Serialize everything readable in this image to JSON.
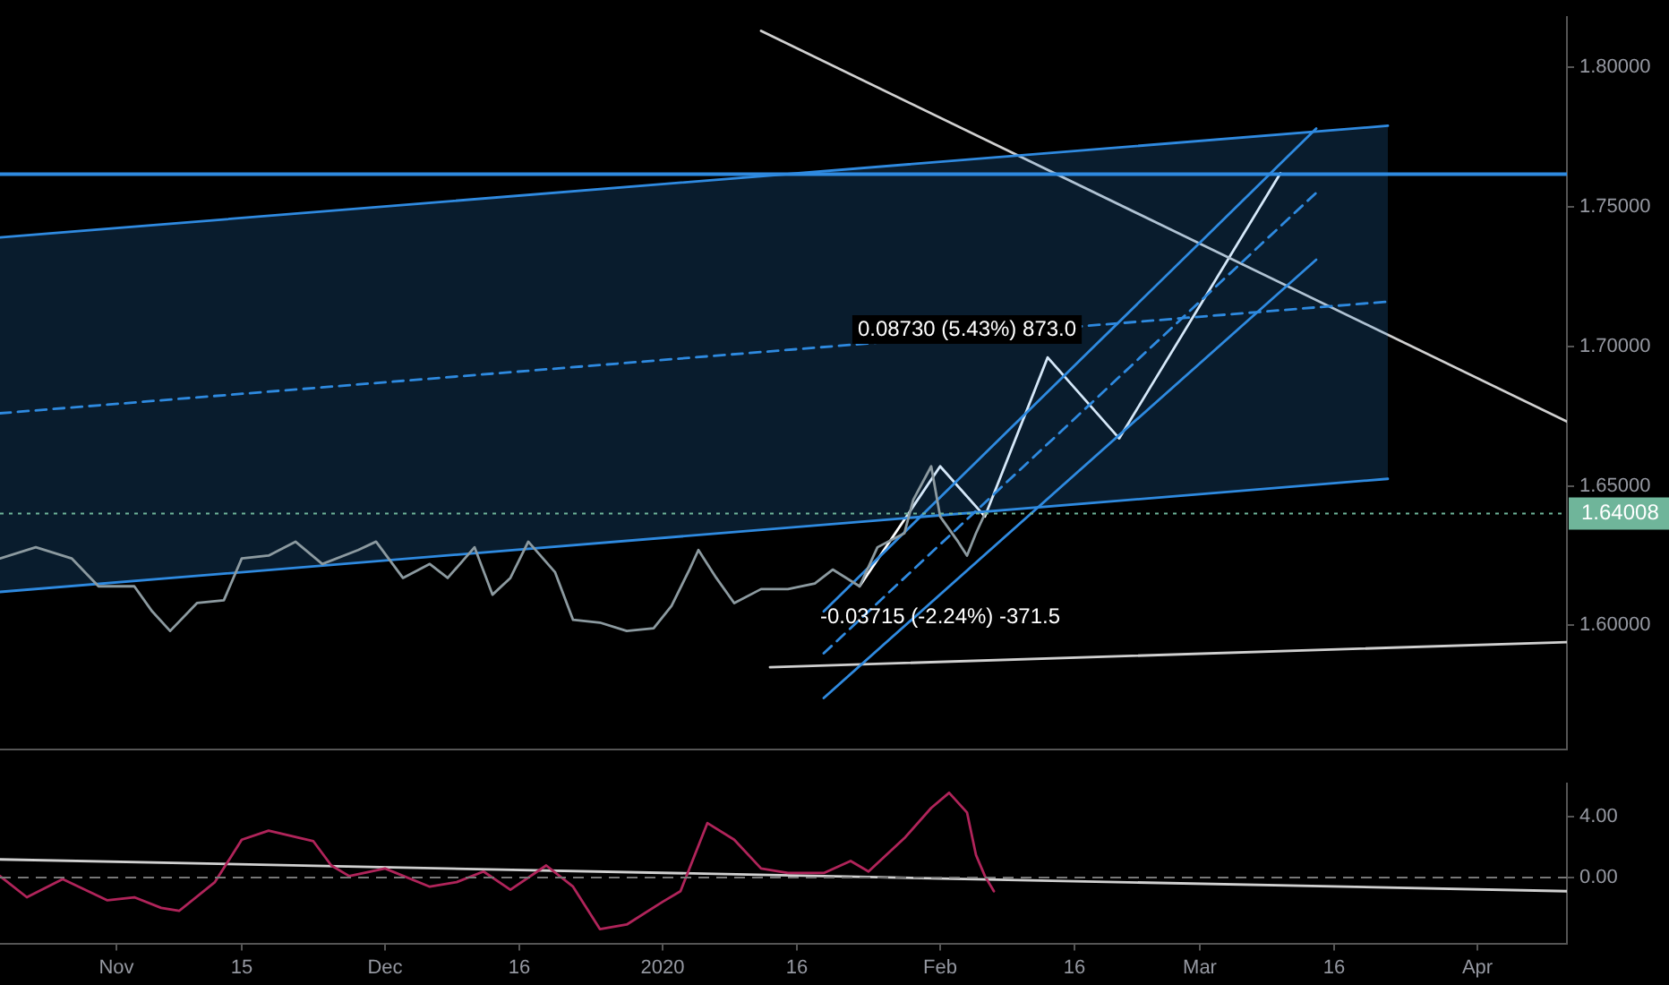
{
  "chart_data": [
    {
      "type": "line",
      "xlim": [
        "2019-10-19",
        "2020-04-11"
      ],
      "ylim": [
        1.5556,
        1.8179
      ],
      "yticks": [
        {
          "value": 1.6,
          "label": "1.60000"
        },
        {
          "value": 1.65,
          "label": "1.65000"
        },
        {
          "value": 1.7,
          "label": "1.70000"
        },
        {
          "value": 1.75,
          "label": "1.75000"
        },
        {
          "value": 1.8,
          "label": "1.80000"
        }
      ],
      "tick_labels": "y",
      "grid": false,
      "legend": false,
      "series": [
        {
          "color": "#8c9aa0",
          "x": [
            "2019-10-19",
            "2019-10-23",
            "2019-10-27",
            "2019-10-30",
            "2019-11-03",
            "2019-11-05",
            "2019-11-07",
            "2019-11-10",
            "2019-11-13",
            "2019-11-15",
            "2019-11-18",
            "2019-11-21",
            "2019-11-24",
            "2019-11-28",
            "2019-11-30",
            "2019-12-03",
            "2019-12-06",
            "2019-12-08",
            "2019-12-11",
            "2019-12-13",
            "2019-12-15",
            "2019-12-17",
            "2019-12-20",
            "2019-12-22",
            "2019-12-25",
            "2019-12-28",
            "2019-12-31",
            "2020-01-02",
            "2020-01-04",
            "2020-01-05",
            "2020-01-07",
            "2020-01-09",
            "2020-01-12",
            "2020-01-15",
            "2020-01-18",
            "2020-01-20",
            "2020-01-23",
            "2020-01-25",
            "2020-01-28",
            "2020-01-29",
            "2020-01-31",
            "2020-02-01",
            "2020-02-03",
            "2020-02-04",
            "2020-02-05",
            "2020-02-06"
          ],
          "values": [
            1.624,
            1.628,
            1.624,
            1.614,
            1.614,
            1.605,
            1.598,
            1.608,
            1.609,
            1.624,
            1.625,
            1.63,
            1.622,
            1.627,
            1.63,
            1.617,
            1.622,
            1.617,
            1.628,
            1.611,
            1.617,
            1.63,
            1.619,
            1.602,
            1.601,
            1.598,
            1.599,
            1.607,
            1.62,
            1.627,
            1.617,
            1.608,
            1.613,
            1.613,
            1.615,
            1.62,
            1.614,
            1.628,
            1.633,
            1.645,
            1.657,
            1.639,
            1.63,
            1.625,
            1.633,
            1.64
          ]
        },
        {
          "color": "#2f8ae0",
          "x": [
            "2019-10-19",
            "2020-03-22"
          ],
          "values": [
            1.739,
            1.779
          ]
        },
        {
          "color": "#2f8ae0",
          "line_style": "dashed",
          "x": [
            "2019-10-19",
            "2020-03-22"
          ],
          "values": [
            1.676,
            1.716
          ],
          "lower": [
            1.612,
            1.6525
          ],
          "upper": [
            1.739,
            1.779
          ]
        },
        {
          "color": "#2f8ae0",
          "x": [
            "2019-10-19",
            "2020-03-22"
          ],
          "values": [
            1.612,
            1.6525
          ]
        },
        {
          "color": "#2f8ae0",
          "x": [
            "2020-01-19",
            "2020-03-14"
          ],
          "values": [
            1.605,
            1.778
          ]
        },
        {
          "color": "#2f8ae0",
          "line_style": "dashed",
          "x": [
            "2020-01-19",
            "2020-03-14"
          ],
          "values": [
            1.59,
            1.755
          ]
        },
        {
          "color": "#2f8ae0",
          "x": [
            "2020-01-19",
            "2020-03-14"
          ],
          "values": [
            1.574,
            1.731
          ]
        },
        {
          "color": "#d0d0d0",
          "x": [
            "2020-01-12",
            "2020-04-11"
          ],
          "values": [
            1.813,
            1.673
          ]
        },
        {
          "color": "#d0d0d0",
          "x": [
            "2020-01-13",
            "2020-04-11"
          ],
          "values": [
            1.585,
            1.594
          ]
        },
        {
          "color": "#ffffff",
          "x": [
            "2020-01-23",
            "2020-02-01",
            "2020-02-06",
            "2020-02-13",
            "2020-02-21",
            "2020-03-10"
          ],
          "values": [
            1.614,
            1.657,
            1.639,
            1.696,
            1.667,
            1.762
          ]
        }
      ],
      "ref_lines": [
        {
          "axis": "y",
          "value": 1.7617,
          "color": "#2f8ae0",
          "line_style": "solid"
        },
        {
          "axis": "y",
          "value": 1.64008,
          "label": "1.64008",
          "color": "#6fb59a",
          "line_style": "dotted"
        }
      ],
      "annotations": [
        {
          "text": "0.08730 (5.43%) 873.0",
          "x": "2020-02-04",
          "y": 1.706
        },
        "-0.03715 (-2.24%) -371.5"
      ]
    },
    {
      "type": "line",
      "xlim": [
        "2019-10-19",
        "2020-04-11"
      ],
      "ylim": [
        -4.35,
        6.2
      ],
      "xticks": [
        {
          "value": "2019-11-01",
          "label": "Nov"
        },
        {
          "value": "2019-11-15",
          "label": "15"
        },
        {
          "value": "2019-12-01",
          "label": "Dec"
        },
        {
          "value": "2019-12-16",
          "label": "16"
        },
        {
          "value": "2020-01-01",
          "label": "2020"
        },
        {
          "value": "2020-01-16",
          "label": "16"
        },
        {
          "value": "2020-02-01",
          "label": "Feb"
        },
        {
          "value": "2020-02-16",
          "label": "16"
        },
        {
          "value": "2020-03-01",
          "label": "Mar"
        },
        {
          "value": "2020-03-16",
          "label": "16"
        },
        {
          "value": "2020-04-01",
          "label": "Apr"
        }
      ],
      "yticks": [
        {
          "value": 0,
          "label": "0.00"
        },
        {
          "value": 4,
          "label": "4.00"
        }
      ],
      "grid": false,
      "legend": false,
      "series": [
        {
          "color": "#b0245a",
          "x": [
            "2019-10-19",
            "2019-10-22",
            "2019-10-26",
            "2019-10-31",
            "2019-11-03",
            "2019-11-06",
            "2019-11-08",
            "2019-11-12",
            "2019-11-15",
            "2019-11-18",
            "2019-11-23",
            "2019-11-25",
            "2019-11-27",
            "2019-12-01",
            "2019-12-06",
            "2019-12-09",
            "2019-12-12",
            "2019-12-15",
            "2019-12-19",
            "2019-12-22",
            "2019-12-25",
            "2019-12-28",
            "2020-01-01",
            "2020-01-03",
            "2020-01-06",
            "2020-01-09",
            "2020-01-12",
            "2020-01-15",
            "2020-01-19",
            "2020-01-22",
            "2020-01-24",
            "2020-01-28",
            "2020-01-31",
            "2020-02-02",
            "2020-02-04",
            "2020-02-05",
            "2020-02-06",
            "2020-02-07"
          ],
          "values": [
            0.1,
            -1.3,
            -0.1,
            -1.5,
            -1.3,
            -2.0,
            -2.2,
            -0.3,
            2.5,
            3.1,
            2.4,
            0.8,
            0.1,
            0.6,
            -0.6,
            -0.3,
            0.4,
            -0.8,
            0.8,
            -0.6,
            -3.4,
            -3.1,
            -1.6,
            -0.9,
            3.6,
            2.5,
            0.6,
            0.3,
            0.3,
            1.1,
            0.4,
            2.6,
            4.6,
            5.6,
            4.3,
            1.5,
            0.1,
            -0.9
          ]
        },
        {
          "color": "#d0d0d0",
          "x": [
            "2019-10-19",
            "2020-04-11"
          ],
          "values": [
            1.2,
            -0.9
          ]
        }
      ],
      "ref_lines": [
        {
          "axis": "y",
          "value": 0,
          "color": "#777777",
          "line_style": "dashed"
        }
      ]
    }
  ]
}
